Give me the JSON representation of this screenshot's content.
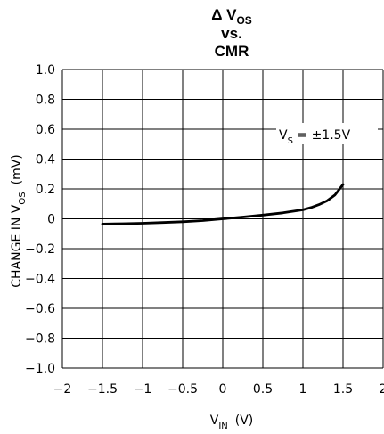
{
  "chart_data": {
    "type": "line",
    "title": {
      "line1_prefix": "Δ V",
      "line1_sub": "OS",
      "line2": "vs.",
      "line3": "CMR"
    },
    "xlabel": {
      "main": "V",
      "sub": "IN",
      "unit": "(V)"
    },
    "ylabel": {
      "prefix": "CHANGE IN V",
      "sub": "OS",
      "unit": "(mV)"
    },
    "xlim": [
      -2,
      2
    ],
    "ylim": [
      -1.0,
      1.0
    ],
    "x_ticks": [
      "-2",
      "-1.5",
      "-1",
      "-0.5",
      "0",
      "0.5",
      "1",
      "1.5",
      "2"
    ],
    "y_ticks": [
      "1.0",
      "0.8",
      "0.6",
      "0.4",
      "0.2",
      "0",
      "-0.2",
      "-0.4",
      "-0.6",
      "-0.8",
      "-1.0"
    ],
    "grid": true,
    "annotation": {
      "main": "V",
      "sub": "S",
      "rest": " = ±1.5V"
    },
    "series": [
      {
        "x": [
          -1.5,
          -1.25,
          -1.0,
          -0.75,
          -0.5,
          -0.25,
          0,
          0.25,
          0.5,
          0.75,
          1.0,
          1.1,
          1.2,
          1.3,
          1.4,
          1.5
        ],
        "y": [
          -0.035,
          -0.033,
          -0.03,
          -0.025,
          -0.02,
          -0.012,
          0.0,
          0.012,
          0.025,
          0.04,
          0.06,
          0.075,
          0.095,
          0.12,
          0.16,
          0.23
        ]
      }
    ]
  }
}
